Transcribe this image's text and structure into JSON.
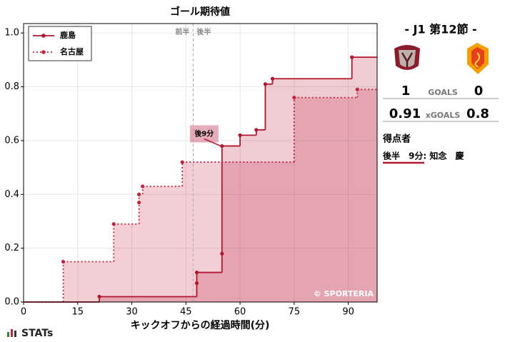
{
  "chart_data": {
    "type": "step",
    "title": "ゴール期待値",
    "xlabel": "キックオフからの経過時間(分)",
    "xlim": [
      0,
      98
    ],
    "ylim": [
      0,
      1.035
    ],
    "xticks": [
      0,
      15,
      30,
      45,
      60,
      75,
      90
    ],
    "yticks": [
      {
        "value": 0,
        "label": "0.0"
      },
      {
        "value": 0.2,
        "label": "0.2"
      },
      {
        "value": 0.4,
        "label": "0.4"
      },
      {
        "value": 0.6,
        "label": "0.6"
      },
      {
        "value": 0.8,
        "label": "0.8"
      },
      {
        "value": 1.0,
        "label": "1.0"
      }
    ],
    "grid": true,
    "legend": "upper left",
    "halftime": {
      "x": 47,
      "first_label": "前半",
      "second_label": "後半"
    },
    "annotation": {
      "text": "後9分",
      "x": 55,
      "y": 0.58
    },
    "watermark": "© SPORTERIA",
    "series": [
      {
        "name": "鹿島",
        "color": "#b3152f",
        "linestyle": "solid",
        "x": [
          21,
          48,
          48,
          55,
          55,
          60,
          64.5,
          67,
          69,
          91
        ],
        "values": [
          0.02,
          0.07,
          0.11,
          0.18,
          0.58,
          0.62,
          0.64,
          0.81,
          0.83,
          0.91
        ]
      },
      {
        "name": "名古屋",
        "color": "#c8203f",
        "linestyle": "dotted",
        "x": [
          11,
          25,
          32,
          32,
          33,
          44,
          75,
          92.5
        ],
        "values": [
          0.15,
          0.29,
          0.37,
          0.4,
          0.43,
          0.52,
          0.76,
          0.79
        ]
      }
    ]
  },
  "panel": {
    "round": "-  J1 第12節  -",
    "home_goals": "1",
    "goals_label": "GOALS",
    "away_goals": "0",
    "home_xg": "0.91",
    "xg_label": "xGOALS",
    "away_xg": "0.8",
    "scorers_title": "得点者",
    "scorer": "後半　9分: 知念　慶"
  },
  "brand": "STATs"
}
